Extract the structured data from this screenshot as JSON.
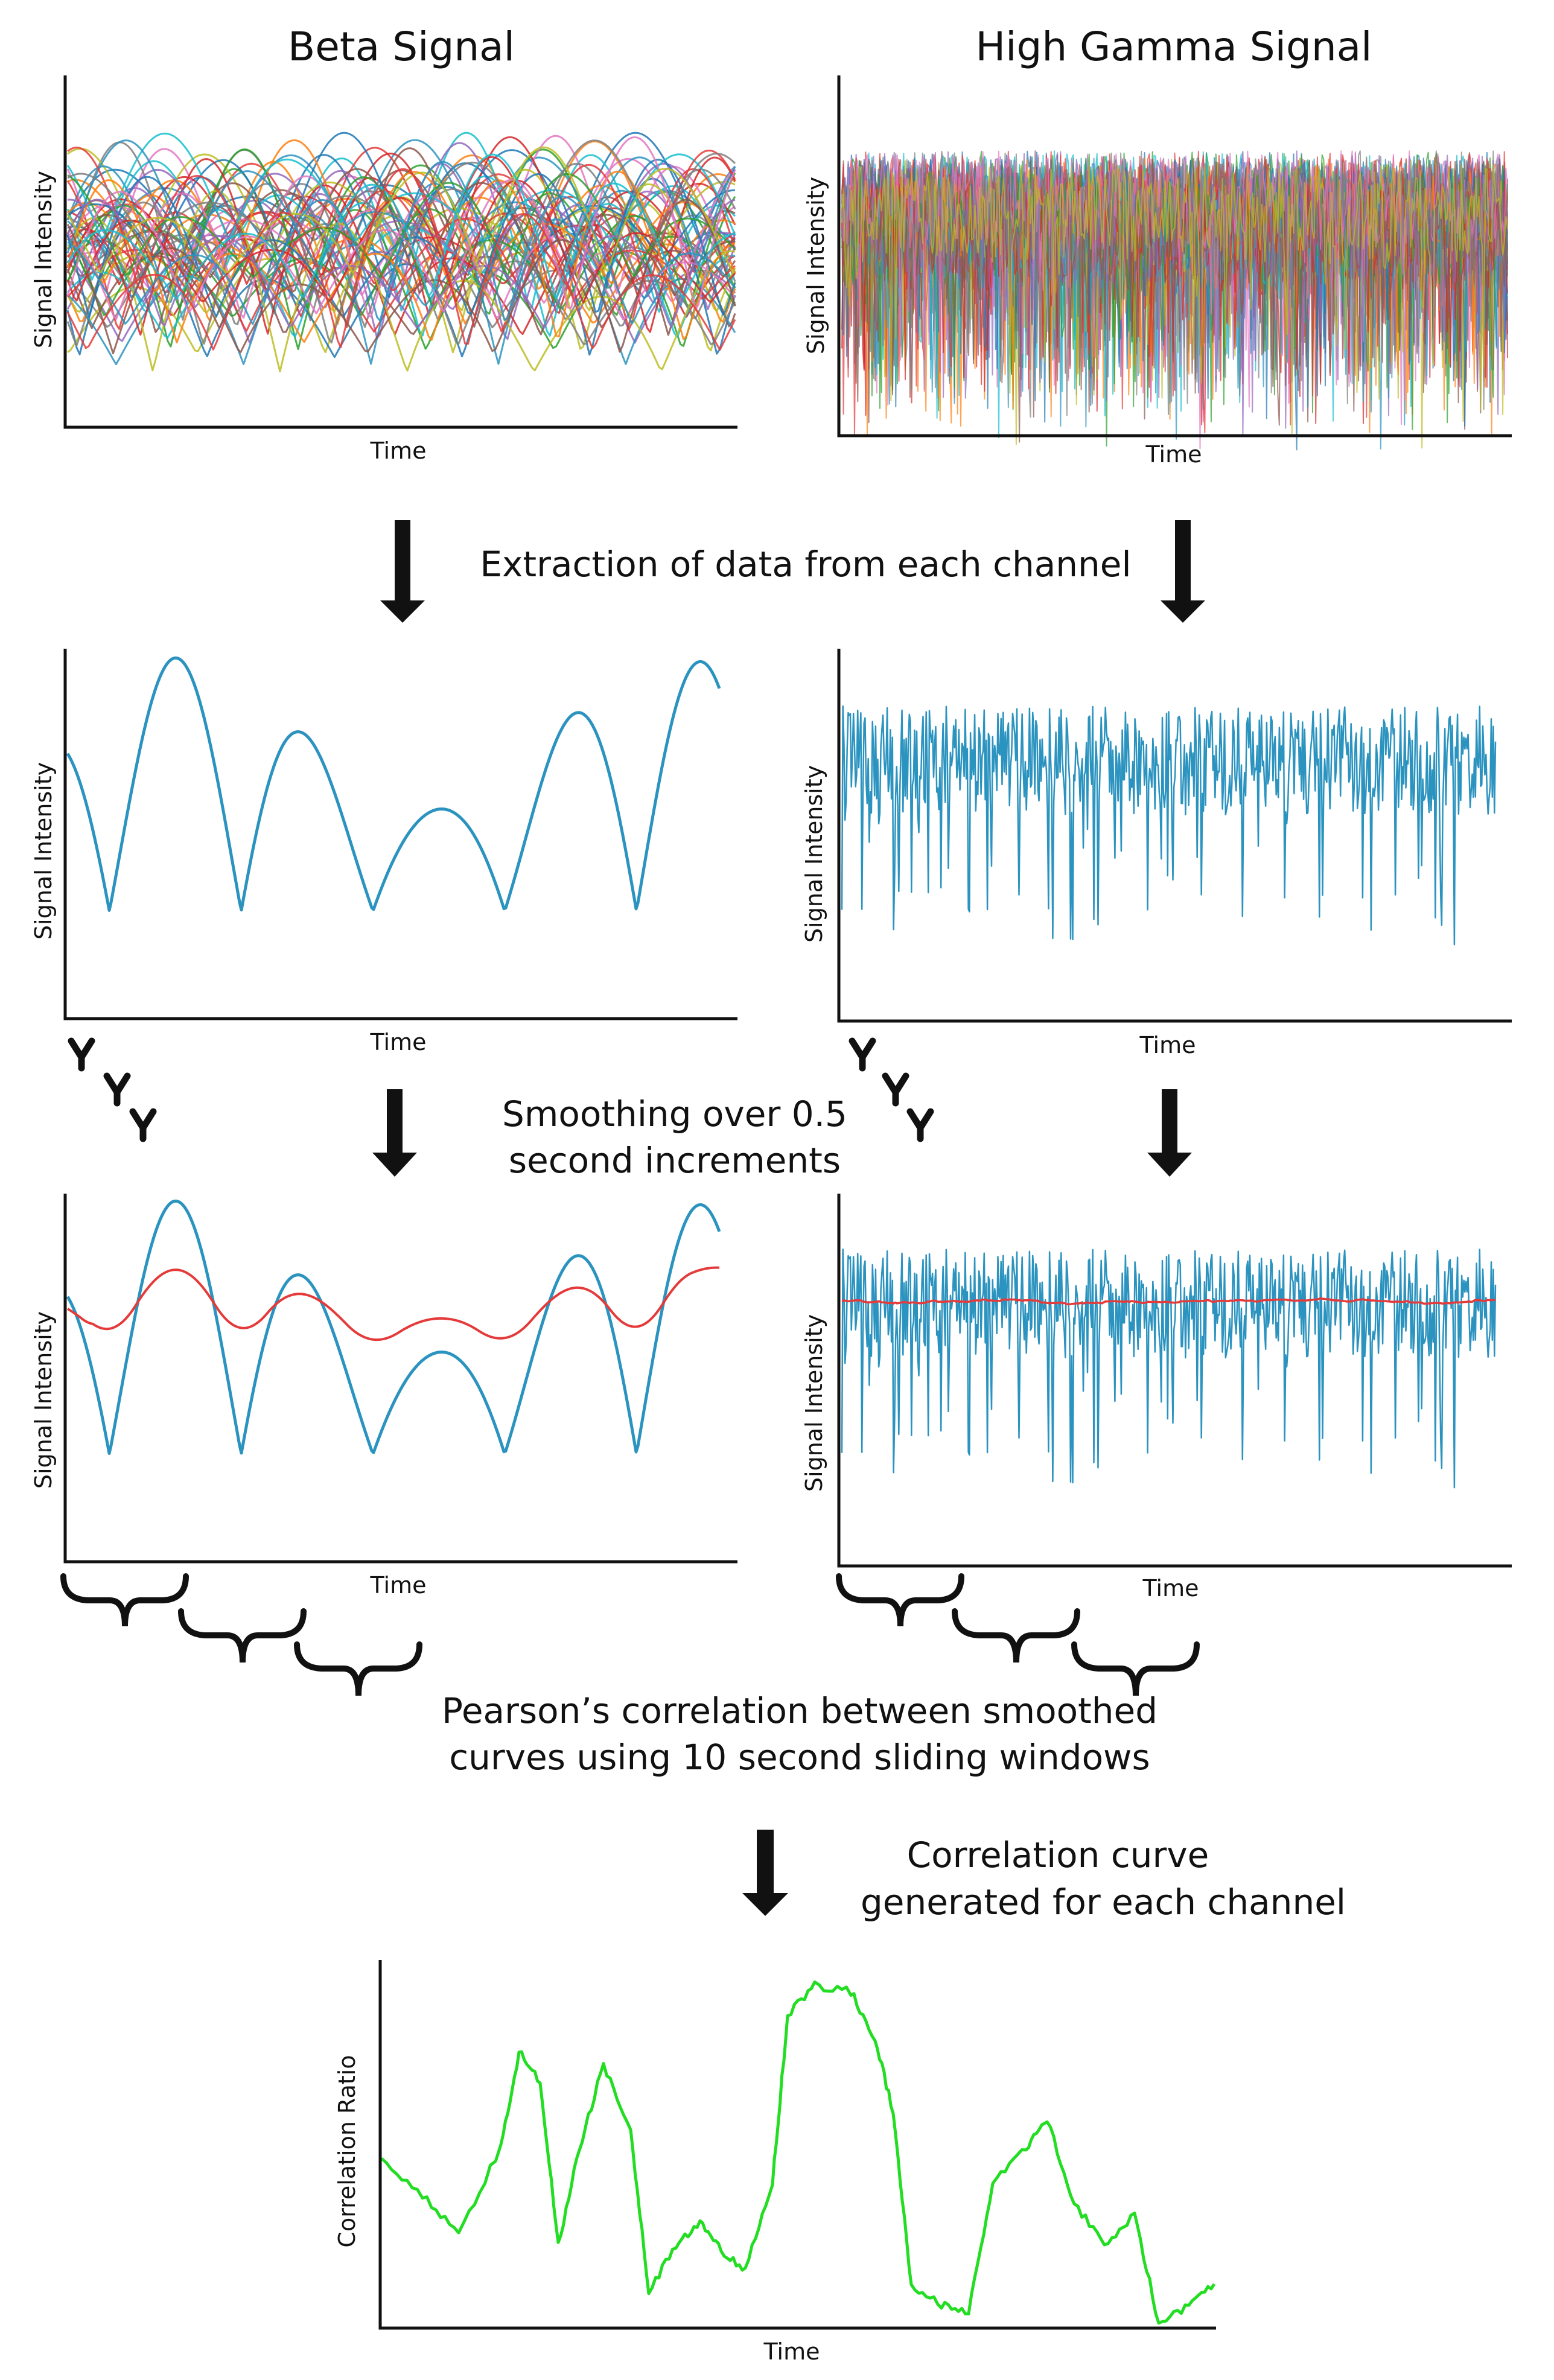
{
  "panels": {
    "beta_raw": {
      "title": "Beta Signal",
      "ylabel": "Signal Intensity",
      "xlabel": "Time"
    },
    "gamma_raw": {
      "title": "High Gamma Signal",
      "ylabel": "Signal Intensity",
      "xlabel": "Time"
    },
    "beta_channel": {
      "ylabel": "Signal Intensity",
      "xlabel": "Time"
    },
    "gamma_channel": {
      "ylabel": "Signal Intensity",
      "xlabel": "Time"
    },
    "beta_smoothed": {
      "ylabel": "Signal Intensity",
      "xlabel": "Time"
    },
    "gamma_smoothed": {
      "ylabel": "Signal Intensity",
      "xlabel": "Time"
    },
    "correlation": {
      "ylabel": "Correlation Ratio",
      "xlabel": "Time"
    }
  },
  "steps": {
    "extraction": "Extraction of data from each channel",
    "smoothing_line1": "Smoothing over 0.5",
    "smoothing_line2": "second increments",
    "pearson_line1": "Pearson’s correlation between smoothed",
    "pearson_line2": "curves using 10 second sliding windows",
    "curve_line1": "Correlation curve",
    "curve_line2": "generated for each channel"
  },
  "colors": {
    "channel_trace": "#2b93bf",
    "smoothed_trace": "#e53a3a",
    "correlation_trace": "#22dd22",
    "axis": "#111111",
    "arrow": "#111111"
  },
  "raw_palette": [
    "#1f77b4",
    "#ff7f0e",
    "#2ca02c",
    "#d62728",
    "#9467bd",
    "#8c564b",
    "#e377c2",
    "#7f7f7f",
    "#bcbd22",
    "#17becf",
    "#2b93bf",
    "#e53a3a"
  ]
}
